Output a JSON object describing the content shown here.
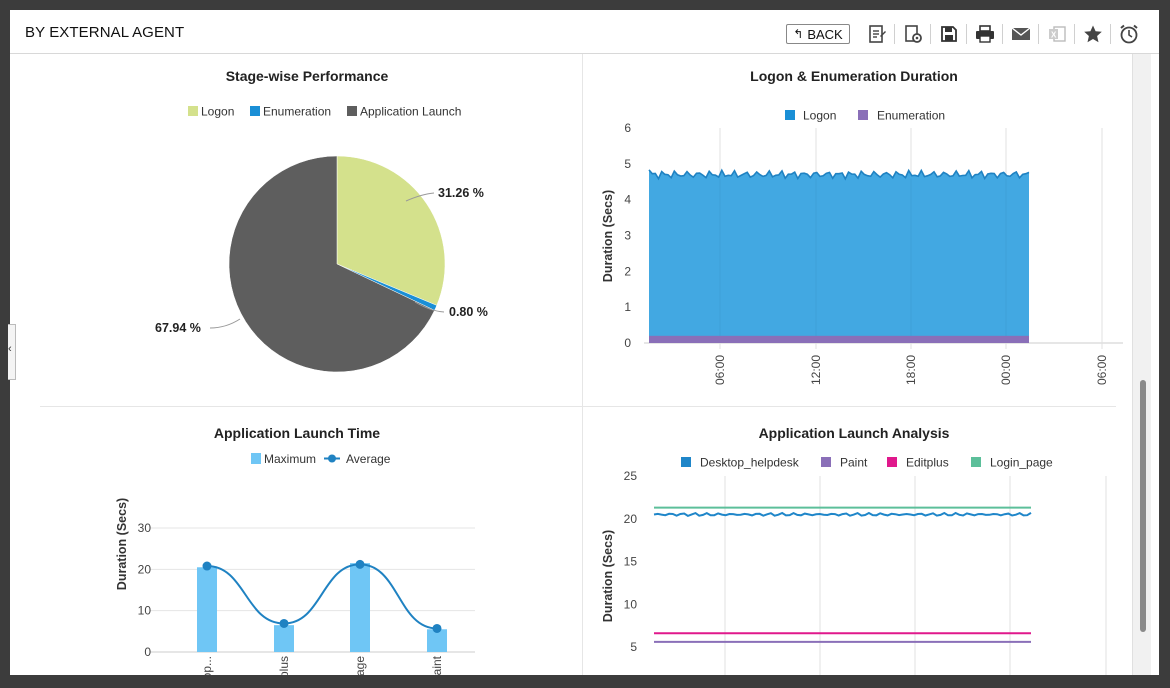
{
  "header": {
    "title": "BY EXTERNAL AGENT",
    "back_label": "BACK",
    "toolbar_icons": [
      "report-icon",
      "settings-report-icon",
      "save-icon",
      "print-icon",
      "email-icon",
      "excel-icon",
      "favorite-star-icon",
      "alarm-clock-icon"
    ]
  },
  "sidebar_toggle": "‹",
  "charts": {
    "stage": {
      "title": "Stage-wise Performance",
      "legend": [
        "Logon",
        "Enumeration",
        "Application Launch"
      ],
      "labels": [
        "31.26 %",
        "0.80 %",
        "67.94 %"
      ]
    },
    "logon": {
      "title": "Logon & Enumeration Duration",
      "legend": [
        "Logon",
        "Enumeration"
      ],
      "ylabel": "Duration (Secs)",
      "yticks": [
        "0",
        "1",
        "2",
        "3",
        "4",
        "5",
        "6"
      ],
      "xticks": [
        "06:00",
        "12:00",
        "18:00",
        "00:00",
        "06:00"
      ]
    },
    "launch_time": {
      "title": "Application Launch Time",
      "legend": [
        "Maximum",
        "Average"
      ],
      "ylabel": "Duration (Secs)",
      "yticks": [
        "0",
        "10",
        "20",
        "30"
      ],
      "categories": [
        "Desktop...",
        "Editplus",
        "Login_page",
        "Paint"
      ]
    },
    "analysis": {
      "title": "Application Launch Analysis",
      "legend": [
        "Desktop_helpdesk",
        "Paint",
        "Editplus",
        "Login_page"
      ],
      "ylabel": "Duration (Secs)",
      "yticks": [
        "5",
        "10",
        "15",
        "20",
        "25"
      ]
    }
  },
  "chart_data": [
    {
      "type": "pie",
      "title": "Stage-wise Performance",
      "legend": [
        "Logon",
        "Enumeration",
        "Application Launch"
      ],
      "slices": [
        {
          "name": "Logon",
          "value": 31.26,
          "color": "#d4e18c"
        },
        {
          "name": "Enumeration",
          "value": 0.8,
          "color": "#1a8fd6"
        },
        {
          "name": "Application Launch",
          "value": 67.94,
          "color": "#5e5e5e"
        }
      ]
    },
    {
      "type": "area",
      "title": "Logon & Enumeration Duration",
      "ylabel": "Duration (Secs)",
      "ylim": [
        0,
        6
      ],
      "xticks": [
        "06:00",
        "12:00",
        "18:00",
        "00:00",
        "06:00"
      ],
      "series": [
        {
          "name": "Logon",
          "color": "#42a8e2",
          "value": 4.7
        },
        {
          "name": "Enumeration",
          "color": "#8a6fb8",
          "value": 0.2
        }
      ]
    },
    {
      "type": "bar",
      "title": "Application Launch Time",
      "categories": [
        "Desktop...",
        "Editplus",
        "Login_page",
        "Paint"
      ],
      "ylabel": "Duration (Secs)",
      "ylim": [
        0,
        30
      ],
      "series": [
        {
          "name": "Maximum",
          "color": "#6fc6f5",
          "values": [
            20.5,
            6.5,
            21.5,
            5.5
          ]
        },
        {
          "name": "Average",
          "color": "#1f82c2",
          "values": [
            20.8,
            6.9,
            21.2,
            5.7
          ]
        }
      ]
    },
    {
      "type": "line",
      "title": "Application Launch Analysis",
      "ylabel": "Duration (Secs)",
      "ylim": [
        5,
        25
      ],
      "series": [
        {
          "name": "Desktop_helpdesk",
          "color": "#1f86c9",
          "value": 20.5
        },
        {
          "name": "Paint",
          "color": "#8a6fb8",
          "value": 5.6
        },
        {
          "name": "Editplus",
          "color": "#e0188c",
          "value": 6.6
        },
        {
          "name": "Login_page",
          "color": "#5cbf9a",
          "value": 21.3
        }
      ]
    }
  ]
}
